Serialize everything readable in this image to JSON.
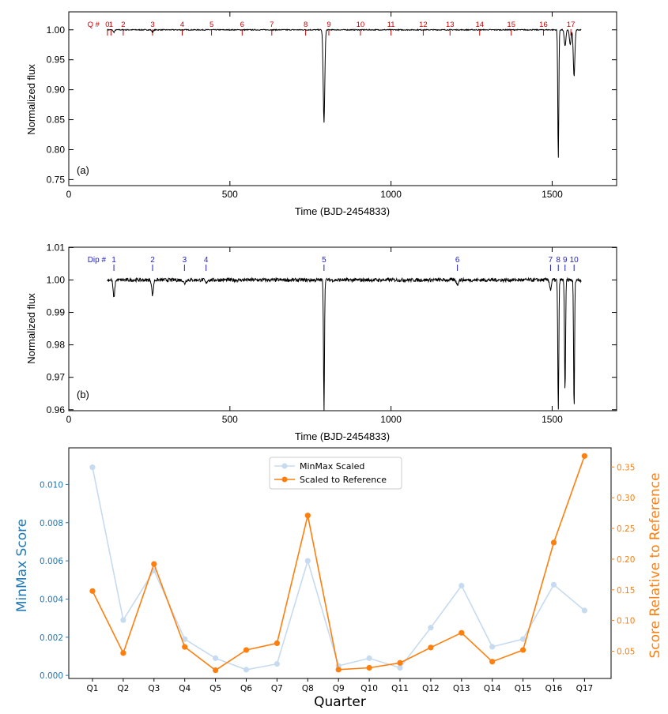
{
  "chart_data": [
    {
      "type": "line",
      "panel": "(a)",
      "xlabel": "Time (BJD-2454833)",
      "ylabel": "Normalized flux",
      "xlim": [
        0,
        1700
      ],
      "ylim": [
        0.74,
        1.03
      ],
      "xticks": [
        "0",
        "500",
        "1000",
        "1500"
      ],
      "yticks": [
        "0.75",
        "0.80",
        "0.85",
        "0.90",
        "0.95",
        "1.00"
      ],
      "marker_title": "Q #",
      "markers": [
        {
          "label": "0",
          "x": 120
        },
        {
          "label": "1",
          "x": 131
        },
        {
          "label": "2",
          "x": 169
        },
        {
          "label": "3",
          "x": 260
        },
        {
          "label": "4",
          "x": 352
        },
        {
          "label": "5",
          "x": 443
        },
        {
          "label": "6",
          "x": 538
        },
        {
          "label": "7",
          "x": 630
        },
        {
          "label": "8",
          "x": 735
        },
        {
          "label": "9",
          "x": 807
        },
        {
          "label": "10",
          "x": 905
        },
        {
          "label": "11",
          "x": 1000
        },
        {
          "label": "12",
          "x": 1100
        },
        {
          "label": "13",
          "x": 1183
        },
        {
          "label": "14",
          "x": 1275
        },
        {
          "label": "15",
          "x": 1373
        },
        {
          "label": "16",
          "x": 1473
        },
        {
          "label": "17",
          "x": 1558
        }
      ],
      "baseline": 1.0,
      "x_range": [
        120,
        1591
      ],
      "dips": [
        {
          "x": 140,
          "min": 0.996
        },
        {
          "x": 260,
          "min": 0.996
        },
        {
          "x": 792,
          "min": 0.845
        },
        {
          "x": 1519,
          "min": 0.785
        },
        {
          "x": 1540,
          "min": 0.973
        },
        {
          "x": 1556,
          "min": 0.975
        },
        {
          "x": 1568,
          "min": 0.922
        }
      ]
    },
    {
      "type": "line",
      "panel": "(b)",
      "xlabel": "Time (BJD-2454833)",
      "ylabel": "Normalized flux",
      "xlim": [
        0,
        1700
      ],
      "ylim": [
        0.9597,
        1.0101
      ],
      "xticks": [
        "0",
        "500",
        "1000",
        "1500"
      ],
      "yticks": [
        "0.96",
        "0.97",
        "0.98",
        "0.99",
        "1.00",
        "1.01"
      ],
      "marker_title": "Dip #",
      "markers": [
        {
          "label": "1",
          "x": 140
        },
        {
          "label": "2",
          "x": 260
        },
        {
          "label": "3",
          "x": 359
        },
        {
          "label": "4",
          "x": 426
        },
        {
          "label": "5",
          "x": 792
        },
        {
          "label": "6",
          "x": 1206
        },
        {
          "label": "7",
          "x": 1495
        },
        {
          "label": "8",
          "x": 1519
        },
        {
          "label": "9",
          "x": 1540
        },
        {
          "label": "10",
          "x": 1568
        }
      ],
      "baseline": 1.0,
      "x_range": [
        120,
        1591
      ],
      "dips": [
        {
          "x": 140,
          "min": 0.9944
        },
        {
          "x": 260,
          "min": 0.9952
        },
        {
          "x": 359,
          "min": 0.9988
        },
        {
          "x": 426,
          "min": 0.9989
        },
        {
          "x": 792,
          "min": 0.96
        },
        {
          "x": 1206,
          "min": 0.9985
        },
        {
          "x": 1495,
          "min": 0.997
        },
        {
          "x": 1519,
          "min": 0.96
        },
        {
          "x": 1540,
          "min": 0.965
        },
        {
          "x": 1568,
          "min": 0.96
        }
      ]
    },
    {
      "type": "line",
      "xlabel": "Quarter",
      "ylabel": "MinMax Score",
      "ylabel_right": "Score Relative to Reference",
      "categories": [
        "Q1",
        "Q2",
        "Q3",
        "Q4",
        "Q5",
        "Q6",
        "Q7",
        "Q8",
        "Q9",
        "Q10",
        "Q11",
        "Q12",
        "Q13",
        "Q14",
        "Q15",
        "Q16",
        "Q17"
      ],
      "ylim_left": [
        -0.00016,
        0.01192
      ],
      "ylim_right": [
        0.00563,
        0.38125
      ],
      "yticks_left": [
        "0.000",
        "0.002",
        "0.004",
        "0.006",
        "0.008",
        "0.010"
      ],
      "yticks_right": [
        "0.05",
        "0.10",
        "0.15",
        "0.20",
        "0.25",
        "0.30",
        "0.35"
      ],
      "legend_position": "upper center",
      "series": [
        {
          "name": "MinMax Scaled",
          "axis": "left",
          "color": "#c6dbef",
          "values": [
            0.0109,
            0.0029,
            0.0055,
            0.0019,
            0.0009,
            0.0003,
            0.0006,
            0.006,
            0.0005,
            0.0009,
            0.0004,
            0.0025,
            0.0047,
            0.0015,
            0.0019,
            0.00475,
            0.0034
          ]
        },
        {
          "name": "Scaled to Reference",
          "axis": "right",
          "color": "#ff7f0e",
          "values": [
            0.148,
            0.047,
            0.192,
            0.057,
            0.019,
            0.052,
            0.063,
            0.271,
            0.02,
            0.023,
            0.031,
            0.056,
            0.08,
            0.033,
            0.052,
            0.227,
            0.368
          ]
        }
      ],
      "colors": {
        "left_axis": "#1f77b4",
        "right_axis": "#ff7f0e"
      }
    }
  ]
}
